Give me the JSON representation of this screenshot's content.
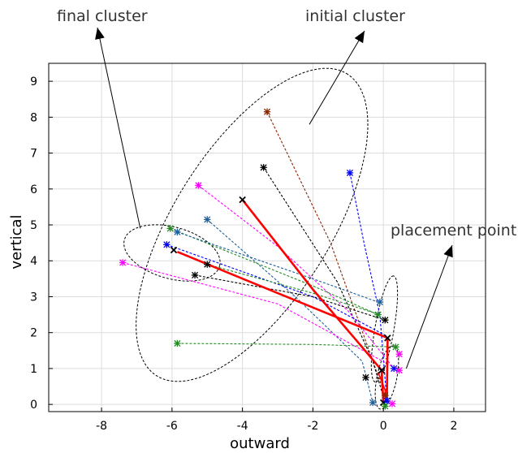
{
  "chart_data": {
    "type": "scatter",
    "title": "",
    "xlabel": "outward",
    "ylabel": "vertical",
    "xlim": [
      -9.5,
      2.9
    ],
    "ylim": [
      -0.2,
      9.5
    ],
    "xticks": [
      -8,
      -6,
      -4,
      -2,
      0,
      2
    ],
    "yticks": [
      0,
      1,
      2,
      3,
      4,
      5,
      6,
      7,
      8,
      9
    ],
    "grid": true,
    "legend": "none",
    "annotations": [
      {
        "id": "final",
        "text": "final cluster",
        "target": [
          -6.9,
          4.9
        ],
        "text_at": [
          -9.0,
          10.75
        ]
      },
      {
        "id": "initial",
        "text": "initial cluster",
        "target": [
          -2.1,
          7.8
        ],
        "text_at": [
          -2.2,
          10.75
        ]
      },
      {
        "id": "placement",
        "text": "placement point",
        "target": [
          0.65,
          1.0
        ],
        "text_at": [
          0.2,
          4.7
        ]
      }
    ],
    "clusters": [
      {
        "id": "initial-cluster",
        "cx": -3.73,
        "cy": 5.0,
        "rx": 5.0,
        "ry": 2.2,
        "angle_deg": 57
      },
      {
        "id": "final-cluster",
        "cx": -6.0,
        "cy": 4.22,
        "rx": 1.4,
        "ry": 0.72,
        "angle_deg": -15
      },
      {
        "id": "placement-cluster-upper",
        "cx": 0.03,
        "cy": 2.1,
        "rx": 1.5,
        "ry": 0.27,
        "angle_deg": 80
      },
      {
        "id": "placement-cluster-lower",
        "cx": 0.1,
        "cy": 0.75,
        "rx": 0.9,
        "ry": 0.28,
        "angle_deg": 78
      }
    ],
    "trajectories": [
      {
        "color": "#8b2500",
        "width": 1.1,
        "dash": true,
        "points": [
          [
            -3.3,
            8.15
          ],
          [
            -1.5,
            4.5
          ],
          [
            -0.55,
            1.9
          ],
          [
            0.05,
            0.25
          ]
        ]
      },
      {
        "color": "#000000",
        "width": 1.1,
        "dash": true,
        "points": [
          [
            -3.4,
            6.6
          ],
          [
            -1.3,
            3.4
          ],
          [
            -0.3,
            1.2
          ],
          [
            0.05,
            0.05
          ]
        ]
      },
      {
        "color": "#0000ff",
        "width": 1.1,
        "dash": true,
        "points": [
          [
            -0.95,
            6.45
          ],
          [
            -0.55,
            4.5
          ],
          [
            -0.1,
            2.5
          ],
          [
            0.1,
            0.1
          ]
        ]
      },
      {
        "color": "#ff00ff",
        "width": 1.1,
        "dash": true,
        "points": [
          [
            -5.25,
            6.1
          ],
          [
            -3.0,
            4.4
          ],
          [
            -1.0,
            2.6
          ],
          [
            0.3,
            1.0
          ]
        ]
      },
      {
        "color": "#1f5f9a",
        "width": 1.1,
        "dash": true,
        "points": [
          [
            -5.0,
            5.15
          ],
          [
            -2.5,
            3.0
          ],
          [
            -0.6,
            1.2
          ],
          [
            -0.3,
            0.05
          ]
        ]
      },
      {
        "color": "#228b22",
        "width": 1.1,
        "dash": true,
        "points": [
          [
            -6.05,
            4.9
          ],
          [
            -2.0,
            3.3
          ],
          [
            -0.15,
            2.5
          ]
        ]
      },
      {
        "color": "#1f5f9a",
        "width": 1.1,
        "dash": true,
        "points": [
          [
            -5.85,
            4.8
          ],
          [
            -2.0,
            3.5
          ],
          [
            -0.15,
            2.85
          ]
        ]
      },
      {
        "color": "#0000ff",
        "width": 1.1,
        "dash": true,
        "points": [
          [
            -6.15,
            4.45
          ],
          [
            -2.0,
            3.0
          ],
          [
            0.1,
            1.9
          ]
        ]
      },
      {
        "color": "#228b22",
        "width": 1.1,
        "dash": true,
        "points": [
          [
            -5.0,
            3.9
          ],
          [
            -2.0,
            3.1
          ],
          [
            -0.1,
            2.5
          ]
        ]
      },
      {
        "color": "#000000",
        "width": 1.1,
        "dash": true,
        "points": [
          [
            -5.35,
            3.6
          ],
          [
            -2.0,
            3.0
          ],
          [
            0.05,
            2.35
          ]
        ]
      },
      {
        "color": "#ff00ff",
        "width": 1.1,
        "dash": true,
        "points": [
          [
            -7.4,
            3.95
          ],
          [
            -3.0,
            2.8
          ],
          [
            0.45,
            0.95
          ]
        ]
      },
      {
        "color": "#228b22",
        "width": 1.1,
        "dash": true,
        "points": [
          [
            -5.85,
            1.7
          ],
          [
            -2.0,
            1.67
          ],
          [
            0.35,
            1.6
          ]
        ]
      },
      {
        "color": "#ff0000",
        "width": 2.6,
        "dash": false,
        "points": [
          [
            -4.0,
            5.7
          ],
          [
            -2.0,
            3.2
          ],
          [
            -0.65,
            1.65
          ],
          [
            -0.05,
            0.95
          ],
          [
            0.0,
            0.05
          ]
        ]
      },
      {
        "color": "#ff0000",
        "width": 2.6,
        "dash": false,
        "points": [
          [
            -5.85,
            4.25
          ],
          [
            -3.0,
            3.1
          ],
          [
            0.12,
            1.85
          ],
          [
            0.1,
            0.1
          ]
        ]
      },
      {
        "color": "#ff0000",
        "width": 1.6,
        "dash": false,
        "points": [
          [
            -0.15,
            0.9
          ],
          [
            0.05,
            0.4
          ],
          [
            0.08,
            0.05
          ]
        ]
      }
    ],
    "markers": [
      {
        "x": -3.3,
        "y": 8.15,
        "color": "#8b2500",
        "shape": "star"
      },
      {
        "x": -3.4,
        "y": 6.6,
        "color": "#000000",
        "shape": "star"
      },
      {
        "x": -0.95,
        "y": 6.45,
        "color": "#0000ff",
        "shape": "star"
      },
      {
        "x": -5.25,
        "y": 6.1,
        "color": "#ff00ff",
        "shape": "star"
      },
      {
        "x": -4.0,
        "y": 5.7,
        "color": "#000000",
        "shape": "x"
      },
      {
        "x": -5.0,
        "y": 5.15,
        "color": "#1f5f9a",
        "shape": "star"
      },
      {
        "x": -6.05,
        "y": 4.9,
        "color": "#228b22",
        "shape": "star"
      },
      {
        "x": -5.85,
        "y": 4.8,
        "color": "#1f5f9a",
        "shape": "star"
      },
      {
        "x": -6.15,
        "y": 4.45,
        "color": "#0000ff",
        "shape": "star"
      },
      {
        "x": -5.95,
        "y": 4.3,
        "color": "#000000",
        "shape": "x"
      },
      {
        "x": -7.4,
        "y": 3.95,
        "color": "#ff00ff",
        "shape": "star"
      },
      {
        "x": -5.0,
        "y": 3.9,
        "color": "#000000",
        "shape": "star"
      },
      {
        "x": -5.35,
        "y": 3.6,
        "color": "#000000",
        "shape": "star"
      },
      {
        "x": -5.85,
        "y": 1.7,
        "color": "#228b22",
        "shape": "star"
      },
      {
        "x": -0.1,
        "y": 2.85,
        "color": "#1f5f9a",
        "shape": "star"
      },
      {
        "x": -0.15,
        "y": 2.5,
        "color": "#228b22",
        "shape": "star"
      },
      {
        "x": 0.05,
        "y": 2.35,
        "color": "#000000",
        "shape": "star"
      },
      {
        "x": 0.12,
        "y": 1.85,
        "color": "#000000",
        "shape": "x"
      },
      {
        "x": 0.35,
        "y": 1.6,
        "color": "#228b22",
        "shape": "star"
      },
      {
        "x": 0.45,
        "y": 1.4,
        "color": "#ff00ff",
        "shape": "star"
      },
      {
        "x": 0.45,
        "y": 0.95,
        "color": "#ff00ff",
        "shape": "star"
      },
      {
        "x": 0.3,
        "y": 1.0,
        "color": "#0000ff",
        "shape": "star"
      },
      {
        "x": -0.05,
        "y": 0.95,
        "color": "#000000",
        "shape": "x"
      },
      {
        "x": -0.5,
        "y": 0.75,
        "color": "#000000",
        "shape": "star"
      },
      {
        "x": -0.3,
        "y": 0.05,
        "color": "#1f5f9a",
        "shape": "star"
      },
      {
        "x": 0.0,
        "y": 0.05,
        "color": "#000000",
        "shape": "x"
      },
      {
        "x": 0.05,
        "y": 0.25,
        "color": "#8b2500",
        "shape": "star"
      },
      {
        "x": 0.1,
        "y": 0.1,
        "color": "#0000ff",
        "shape": "star"
      },
      {
        "x": 0.25,
        "y": 0.02,
        "color": "#ff00ff",
        "shape": "star"
      },
      {
        "x": 0.05,
        "y": -0.05,
        "color": "#228b22",
        "shape": "star"
      }
    ]
  }
}
